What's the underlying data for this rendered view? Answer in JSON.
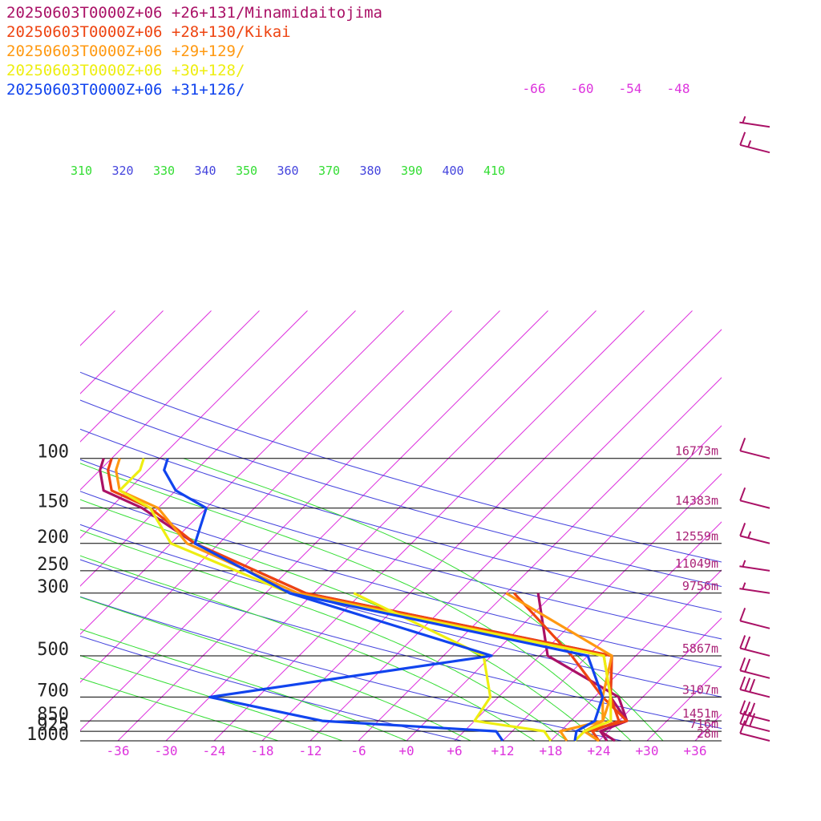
{
  "chart_data": {
    "type": "line",
    "chart_kind": "skew-T log-P sounding diagram",
    "xlabel": "",
    "ylabel": "",
    "colors": {
      "isobar": "#000000",
      "isotherm": "#dd33dd",
      "dry_adiabat": "#4444dd",
      "moist_adiabat": "#33dd33",
      "height_label": "#aa2277",
      "wind_barb": "#aa1166"
    },
    "pressure_levels": [
      {
        "p": 100,
        "label": "100",
        "height": "16773m"
      },
      {
        "p": 150,
        "label": "150",
        "height": "14383m"
      },
      {
        "p": 200,
        "label": "200",
        "height": "12559m"
      },
      {
        "p": 250,
        "label": "250",
        "height": "11049m"
      },
      {
        "p": 300,
        "label": "300",
        "height": "9756m"
      },
      {
        "p": 500,
        "label": "500",
        "height": "5867m"
      },
      {
        "p": 700,
        "label": "700",
        "height": "3107m"
      },
      {
        "p": 850,
        "label": "850",
        "height": "1451m"
      },
      {
        "p": 925,
        "label": "925",
        "height": "716m"
      },
      {
        "p": 1000,
        "label": "1000",
        "height": "28m"
      }
    ],
    "temperature_ticks": [
      "-36",
      "-30",
      "-24",
      "-18",
      "-12",
      "-6",
      "+0",
      "+6",
      "+12",
      "+18",
      "+24",
      "+30",
      "+36"
    ],
    "upper_isotherm_labels": [
      "-66",
      "-60",
      "-54",
      "-48"
    ],
    "theta_labels": [
      {
        "text": "310",
        "kind": "moist"
      },
      {
        "text": "320",
        "kind": "dry"
      },
      {
        "text": "330",
        "kind": "moist"
      },
      {
        "text": "340",
        "kind": "dry"
      },
      {
        "text": "350",
        "kind": "moist"
      },
      {
        "text": "360",
        "kind": "dry"
      },
      {
        "text": "370",
        "kind": "moist"
      },
      {
        "text": "380",
        "kind": "dry"
      },
      {
        "text": "390",
        "kind": "moist"
      },
      {
        "text": "400",
        "kind": "dry"
      },
      {
        "text": "410",
        "kind": "moist"
      }
    ],
    "series": [
      {
        "name": "20250603T0000Z+06 +26+131/Minamidaitojima",
        "color": "#aa1166",
        "temperature": [
          [
            1000,
            25
          ],
          [
            925,
            23
          ],
          [
            850,
            25
          ],
          [
            700,
            20
          ],
          [
            500,
            15
          ],
          [
            300,
            -31
          ],
          [
            200,
            -51
          ],
          [
            150,
            -62
          ],
          [
            130,
            -69
          ],
          [
            110,
            -72
          ],
          [
            100,
            -73
          ]
        ],
        "dewpoint": [
          [
            1000,
            26
          ],
          [
            925,
            23
          ],
          [
            850,
            25
          ],
          [
            700,
            21
          ],
          [
            500,
            7
          ],
          [
            300,
            -2
          ]
        ]
      },
      {
        "name": "20250603T0000Z+06 +28+130/Kikai",
        "color": "#ee4411",
        "temperature": [
          [
            1000,
            24
          ],
          [
            925,
            22
          ],
          [
            850,
            24
          ],
          [
            700,
            20
          ],
          [
            500,
            15
          ],
          [
            300,
            -31
          ],
          [
            200,
            -51
          ],
          [
            150,
            -61
          ],
          [
            130,
            -68
          ],
          [
            110,
            -71
          ],
          [
            100,
            -72
          ]
        ],
        "dewpoint": [
          [
            1000,
            24
          ],
          [
            925,
            21
          ],
          [
            850,
            25
          ],
          [
            700,
            19
          ],
          [
            500,
            10
          ],
          [
            300,
            -5
          ]
        ]
      },
      {
        "name": "20250603T0000Z+06 +29+129/",
        "color": "#ff9911",
        "temperature": [
          [
            1000,
            24
          ],
          [
            925,
            21
          ],
          [
            850,
            22
          ],
          [
            700,
            20
          ],
          [
            500,
            14
          ],
          [
            300,
            -32
          ],
          [
            200,
            -52
          ],
          [
            150,
            -60
          ],
          [
            130,
            -67
          ],
          [
            110,
            -70
          ],
          [
            100,
            -71
          ]
        ],
        "dewpoint": [
          [
            1000,
            20
          ],
          [
            925,
            18
          ],
          [
            850,
            22
          ],
          [
            700,
            19
          ],
          [
            500,
            15
          ],
          [
            300,
            -6
          ]
        ]
      },
      {
        "name": "20250603T0000Z+06 +30+128/",
        "color": "#eeee11",
        "temperature": [
          [
            1000,
            21
          ],
          [
            925,
            21
          ],
          [
            850,
            23
          ],
          [
            700,
            20
          ],
          [
            500,
            14
          ],
          [
            300,
            -33
          ],
          [
            200,
            -54
          ],
          [
            150,
            -61
          ],
          [
            130,
            -67
          ],
          [
            110,
            -67
          ],
          [
            100,
            -68
          ]
        ],
        "dewpoint": [
          [
            1000,
            18
          ],
          [
            925,
            16
          ],
          [
            850,
            6
          ],
          [
            700,
            5
          ],
          [
            500,
            -1
          ],
          [
            300,
            -25
          ]
        ]
      },
      {
        "name": "20250603T0000Z+06 +31+126/",
        "color": "#1144ee",
        "temperature": [
          [
            1000,
            21
          ],
          [
            925,
            20
          ],
          [
            850,
            21
          ],
          [
            700,
            19
          ],
          [
            500,
            12
          ],
          [
            300,
            -33
          ],
          [
            200,
            -51
          ],
          [
            150,
            -54
          ],
          [
            130,
            -60
          ],
          [
            110,
            -64
          ],
          [
            100,
            -65
          ]
        ],
        "dewpoint": [
          [
            1000,
            12
          ],
          [
            925,
            10
          ],
          [
            850,
            -13
          ],
          [
            700,
            -30
          ],
          [
            500,
            0
          ],
          [
            300,
            -33
          ]
        ]
      }
    ],
    "wind_barbs": [
      {
        "p": 1000,
        "speed_kt": 10,
        "barbs": "1 full"
      },
      {
        "p": 925,
        "speed_kt": 30,
        "barbs": "3 full"
      },
      {
        "p": 850,
        "speed_kt": 30,
        "barbs": "3 full"
      },
      {
        "p": 700,
        "speed_kt": 30,
        "barbs": "3 full"
      },
      {
        "p": 600,
        "speed_kt": 20,
        "barbs": "2 full"
      },
      {
        "p": 500,
        "speed_kt": 20,
        "barbs": "2 full"
      },
      {
        "p": 400,
        "speed_kt": 10,
        "barbs": "1 full"
      },
      {
        "p": 300,
        "speed_kt": 5,
        "barbs": "1 half"
      },
      {
        "p": 250,
        "speed_kt": 5,
        "barbs": "1 half"
      },
      {
        "p": 200,
        "speed_kt": 15,
        "barbs": "1 full, 1 half"
      },
      {
        "p": 150,
        "speed_kt": 10,
        "barbs": "1 full"
      },
      {
        "p": 100,
        "speed_kt": 10,
        "barbs": "1 full"
      },
      {
        "p": 70,
        "speed_kt": 15,
        "barbs": "1 full, 1 half"
      },
      {
        "p": 50,
        "speed_kt": 5,
        "barbs": "1 half"
      }
    ]
  }
}
